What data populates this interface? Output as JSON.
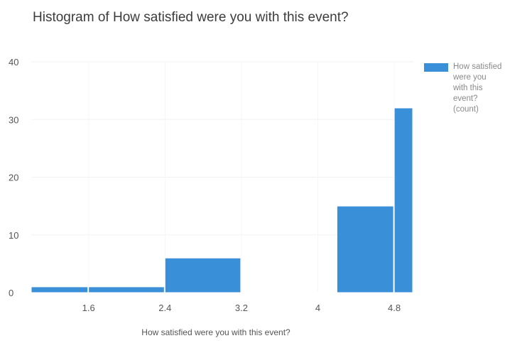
{
  "chart_data": {
    "type": "bar",
    "title": "Histogram of How satisfied were you with this event?",
    "xlabel": "How satisfied were you with this event?",
    "ylabel": "",
    "ylim": [
      0,
      40
    ],
    "yticks": [
      0,
      10,
      20,
      30,
      40
    ],
    "xticks": [
      "1.6",
      "2.4",
      "3.2",
      "4",
      "4.8"
    ],
    "grid": true,
    "legend_position": "top-right",
    "color": "#3a8fd9",
    "bins": [
      {
        "start": 1.0,
        "end": 1.6,
        "count": 1
      },
      {
        "start": 1.6,
        "end": 2.4,
        "count": 1
      },
      {
        "start": 2.4,
        "end": 3.2,
        "count": 6
      },
      {
        "start": 3.2,
        "end": 4.0,
        "count": 0
      },
      {
        "start": 4.0,
        "end": 4.2,
        "count": 0
      },
      {
        "start": 4.2,
        "end": 4.8,
        "count": 15
      },
      {
        "start": 4.8,
        "end": 5.0,
        "count": 32
      }
    ],
    "series": [
      {
        "name": "How satisfied were you with this event? (count)"
      }
    ]
  }
}
